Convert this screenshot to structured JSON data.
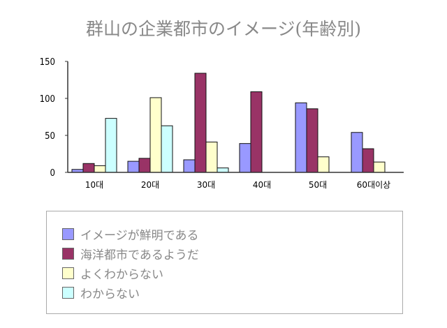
{
  "chart_data": {
    "type": "bar",
    "title": "群山の企業都市のイメージ(年齢別)",
    "categories": [
      "10대",
      "20대",
      "30대",
      "40대",
      "50대",
      "60대이상"
    ],
    "series": [
      {
        "name": "イメージが鮮明である",
        "color": "#9999ff",
        "values": [
          4,
          15,
          17,
          39,
          94,
          54
        ]
      },
      {
        "name": "海洋都市であるようだ",
        "color": "#993366",
        "values": [
          12,
          19,
          134,
          109,
          86,
          32
        ]
      },
      {
        "name": "よくわからない",
        "color": "#ffffcc",
        "values": [
          9,
          101,
          41,
          null,
          21,
          14
        ]
      },
      {
        "name": "わからない",
        "color": "#ccffff",
        "values": [
          73,
          63,
          6,
          null,
          null,
          null
        ]
      }
    ],
    "yticks": [
      0,
      50,
      100,
      150
    ],
    "ylim": [
      0,
      150
    ],
    "xlabel": "",
    "ylabel": "",
    "grid": false,
    "legend_position": "bottom"
  }
}
